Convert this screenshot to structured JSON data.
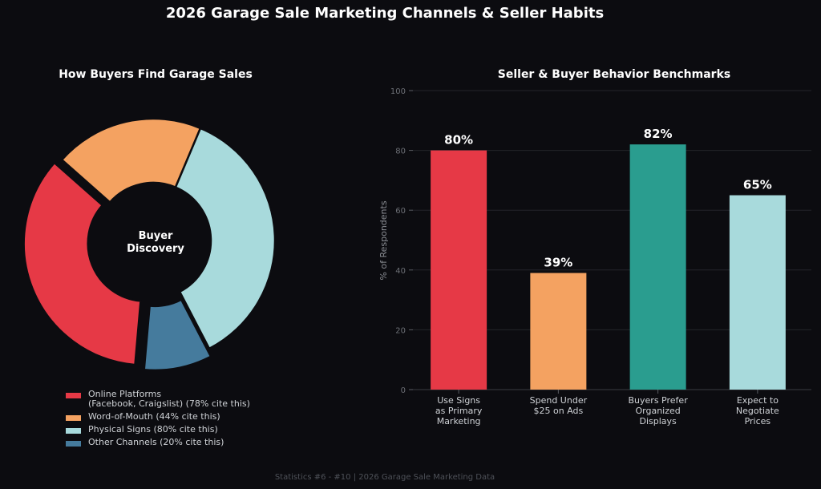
{
  "title": "2026 Garage Sale Marketing Channels & Seller Habits",
  "footer": "Statistics #6 - #10  |  2026 Garage Sale Marketing Data",
  "colors": {
    "background": "#0c0c10",
    "red": "#e63946",
    "orange": "#f4a261",
    "teal": "#2a9d8f",
    "light_teal": "#a8dadc",
    "steel_blue": "#457b9d"
  },
  "chart_data": [
    {
      "type": "pie",
      "subtype": "donut",
      "title": "How Buyers Find Garage Sales",
      "center_label": "Buyer\nDiscovery",
      "legend_position": "bottom",
      "slices": [
        {
          "label": "Online Platforms\n(Facebook, Craigslist)  (78% cite this)",
          "value": 78,
          "color": "#e63946",
          "exploded": true
        },
        {
          "label": "Word-of-Mouth  (44% cite this)",
          "value": 44,
          "color": "#f4a261",
          "exploded": false
        },
        {
          "label": "Physical Signs  (80% cite this)",
          "value": 80,
          "color": "#a8dadc",
          "exploded": false
        },
        {
          "label": "Other Channels  (20% cite this)",
          "value": 20,
          "color": "#457b9d",
          "exploded": true
        }
      ]
    },
    {
      "type": "bar",
      "title": "Seller & Buyer Behavior Benchmarks",
      "ylabel": "% of Respondents",
      "xlabel": "",
      "ylim": [
        0,
        100
      ],
      "yticks": [
        0,
        20,
        40,
        60,
        80,
        100
      ],
      "grid": true,
      "categories": [
        "Use Signs\nas Primary\nMarketing",
        "Spend Under\n$25 on Ads",
        "Buyers Prefer\nOrganized\nDisplays",
        "Expect to\nNegotiate\nPrices"
      ],
      "values": [
        80,
        39,
        82,
        65
      ],
      "value_labels": [
        "80%",
        "39%",
        "82%",
        "65%"
      ],
      "bar_colors": [
        "#e63946",
        "#f4a261",
        "#2a9d8f",
        "#a8dadc"
      ]
    }
  ]
}
